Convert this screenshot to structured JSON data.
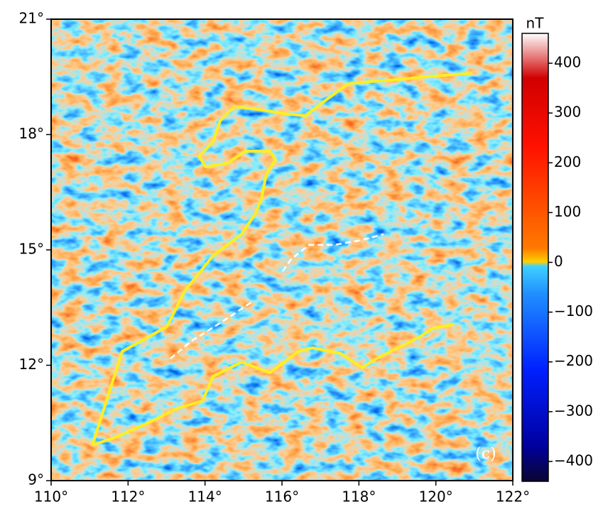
{
  "map": {
    "xlim": [
      110,
      122
    ],
    "ylim": [
      9,
      21
    ],
    "xticks": [
      {
        "value": 110,
        "label": "110°"
      },
      {
        "value": 112,
        "label": "112°"
      },
      {
        "value": 114,
        "label": "114°"
      },
      {
        "value": 116,
        "label": "116°"
      },
      {
        "value": 118,
        "label": "118°"
      },
      {
        "value": 120,
        "label": "120°"
      },
      {
        "value": 122,
        "label": "122°"
      }
    ],
    "yticks": [
      {
        "value": 9,
        "label": "9°"
      },
      {
        "value": 12,
        "label": "12°"
      },
      {
        "value": 15,
        "label": "15°"
      },
      {
        "value": 18,
        "label": "18°"
      },
      {
        "value": 21,
        "label": "21°"
      }
    ],
    "panel_label": "(c)",
    "colorbar": {
      "unit": "nT",
      "lim": [
        -440,
        460
      ],
      "ticks": [
        400,
        300,
        200,
        100,
        0,
        {
          "value": -100,
          "label": "−100"
        },
        {
          "value": -200,
          "label": "−200"
        },
        {
          "value": -300,
          "label": "−300"
        },
        {
          "value": -400,
          "label": "−400"
        }
      ]
    }
  }
}
